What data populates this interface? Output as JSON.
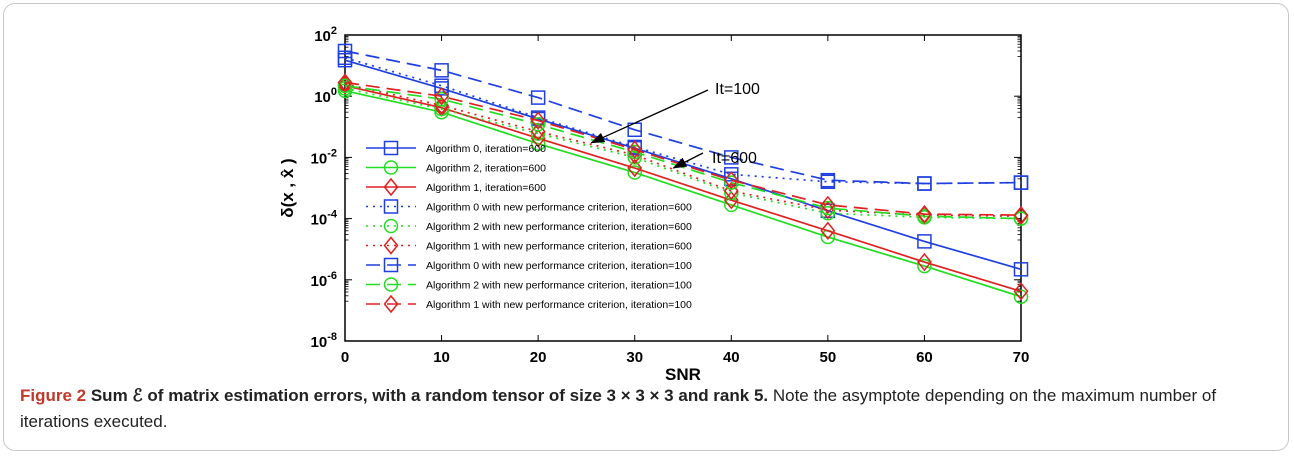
{
  "chart_data": {
    "type": "line",
    "xlabel": "SNR",
    "ylabel": "δ(x , x̂ )",
    "x": [
      0,
      10,
      20,
      30,
      40,
      50,
      60,
      70
    ],
    "xlim": [
      0,
      70
    ],
    "ylim": [
      1e-08,
      100
    ],
    "yscale": "log",
    "xticks": [
      0,
      10,
      20,
      30,
      40,
      50,
      60,
      70
    ],
    "ytick_exponents": [
      2,
      0,
      -2,
      -4,
      -6,
      -8
    ],
    "grid": false,
    "legend_position": "lower-left",
    "series": [
      {
        "name": "Algorithm 0, iteration=600",
        "color": "#1f3fe0",
        "dash": "solid",
        "marker": "square",
        "values": [
          15,
          1.8,
          0.18,
          0.02,
          0.002,
          0.00018,
          1.8e-05,
          2.2e-06
        ]
      },
      {
        "name": "Algorithm 2, iteration=600",
        "color": "#22dd22",
        "dash": "solid",
        "marker": "circle",
        "values": [
          1.5,
          0.3,
          0.028,
          0.0032,
          0.00028,
          2.5e-05,
          2.8e-06,
          2.8e-07
        ]
      },
      {
        "name": "Algorithm 1, iteration=600",
        "color": "#e02020",
        "dash": "solid",
        "marker": "diamond",
        "values": [
          2.2,
          0.42,
          0.042,
          0.0045,
          0.0004,
          4e-05,
          3.8e-06,
          4.2e-07
        ]
      },
      {
        "name": "Algorithm 0 with new performance criterion, iteration=600",
        "color": "#1f3fe0",
        "dash": "dotted",
        "marker": "square",
        "values": [
          18,
          2.2,
          0.2,
          0.022,
          0.0028,
          0.0016,
          0.0014,
          0.0015
        ]
      },
      {
        "name": "Algorithm 2 with new performance criterion, iteration=600",
        "color": "#22dd22",
        "dash": "dotted",
        "marker": "circle",
        "values": [
          1.8,
          0.38,
          0.06,
          0.01,
          0.0007,
          0.00015,
          0.00011,
          0.0001
        ]
      },
      {
        "name": "Algorithm 1 with new performance criterion, iteration=600",
        "color": "#e02020",
        "dash": "dotted",
        "marker": "diamond",
        "values": [
          2.5,
          0.5,
          0.07,
          0.012,
          0.0008,
          0.00019,
          0.00013,
          0.00012
        ]
      },
      {
        "name": "Algorithm 0 with new performance criterion, iteration=100",
        "color": "#1f3fe0",
        "dash": "dashed",
        "marker": "square",
        "values": [
          30,
          7,
          0.9,
          0.08,
          0.01,
          0.0018,
          0.0014,
          0.0015
        ]
      },
      {
        "name": "Algorithm 2 with new performance criterion, iteration=100",
        "color": "#22dd22",
        "dash": "dashed",
        "marker": "circle",
        "values": [
          2.2,
          0.8,
          0.12,
          0.015,
          0.0015,
          0.00022,
          0.00012,
          0.0001
        ]
      },
      {
        "name": "Algorithm 1 with new performance criterion, iteration=100",
        "color": "#e02020",
        "dash": "dashed",
        "marker": "diamond",
        "values": [
          2.8,
          1.0,
          0.16,
          0.018,
          0.0018,
          0.00028,
          0.00014,
          0.00013
        ]
      }
    ],
    "annotations": [
      {
        "text": "It=100",
        "arrow_to": {
          "x": 25.5,
          "y": 0.03
        }
      },
      {
        "text": "It=600",
        "arrow_to": {
          "x": 34,
          "y": 0.0045
        }
      }
    ]
  },
  "caption": {
    "figure_label": "Figure 2",
    "bold_part": " Sum ℰ of matrix estimation errors, with a random tensor of size 3 × 3 × 3 and rank 5.",
    "rest": " Note the asymptote depending on the maximum number of iterations executed."
  }
}
